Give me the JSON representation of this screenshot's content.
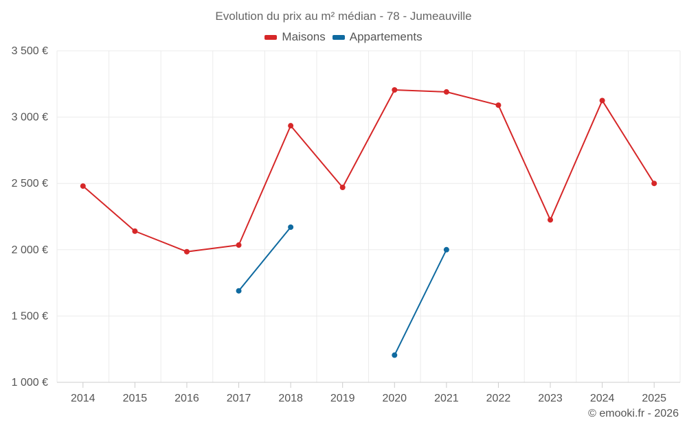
{
  "chart_data": {
    "type": "line",
    "title": "Evolution du prix au m² médian - 78 - Jumeauville",
    "categories": [
      "2014",
      "2015",
      "2016",
      "2017",
      "2018",
      "2019",
      "2020",
      "2021",
      "2022",
      "2023",
      "2024",
      "2025"
    ],
    "ylim": [
      1000,
      3500
    ],
    "yticks": [
      1000,
      1500,
      2000,
      2500,
      3000,
      3500
    ],
    "ytick_labels": [
      "1 000 €",
      "1 500 €",
      "2 000 €",
      "2 500 €",
      "3 000 €",
      "3 500 €"
    ],
    "grid": true,
    "legend_position": "top-center",
    "series": [
      {
        "name": "Maisons",
        "color": "#d62728",
        "values": [
          2480,
          2140,
          1985,
          2035,
          2935,
          2470,
          3205,
          3190,
          3090,
          2225,
          3125,
          2500
        ]
      },
      {
        "name": "Appartements",
        "color": "#0f6aa0",
        "values": [
          null,
          null,
          null,
          1690,
          2170,
          null,
          1205,
          2000,
          null,
          null,
          null,
          null
        ]
      }
    ]
  },
  "credit": "© emooki.fr - 2026"
}
